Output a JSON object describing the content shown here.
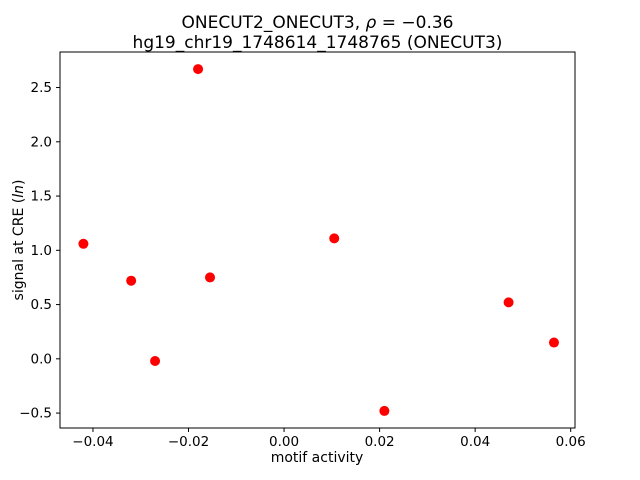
{
  "chart_data": {
    "type": "scatter",
    "title": {
      "prefix": "ONECUT2_ONECUT3, ",
      "rho": "ρ",
      "eq": " = −0.36",
      "line2": "hg19_chr19_1748614_1748765 (ONECUT3)"
    },
    "xlabel": "motif activity",
    "ylabel": {
      "pre": "signal at CRE (",
      "ln": "ln",
      "post": ")"
    },
    "marker_color": "#ff0000",
    "axis_color": "#000000",
    "xlim": [
      -0.0469,
      0.0609
    ],
    "ylim": [
      -0.6375,
      2.8275
    ],
    "xticks": [
      {
        "v": -0.04,
        "label": "−0.04"
      },
      {
        "v": -0.02,
        "label": "−0.02"
      },
      {
        "v": 0.0,
        "label": "0.00"
      },
      {
        "v": 0.02,
        "label": "0.02"
      },
      {
        "v": 0.04,
        "label": "0.04"
      },
      {
        "v": 0.06,
        "label": "0.06"
      }
    ],
    "yticks": [
      {
        "v": -0.5,
        "label": "−0.5"
      },
      {
        "v": 0.0,
        "label": "0.0"
      },
      {
        "v": 0.5,
        "label": "0.5"
      },
      {
        "v": 1.0,
        "label": "1.0"
      },
      {
        "v": 1.5,
        "label": "1.5"
      },
      {
        "v": 2.0,
        "label": "2.0"
      },
      {
        "v": 2.5,
        "label": "2.5"
      }
    ],
    "points": [
      {
        "x": -0.042,
        "y": 1.06
      },
      {
        "x": -0.032,
        "y": 0.72
      },
      {
        "x": -0.027,
        "y": -0.02
      },
      {
        "x": -0.018,
        "y": 2.67
      },
      {
        "x": -0.0155,
        "y": 0.75
      },
      {
        "x": 0.0105,
        "y": 1.11
      },
      {
        "x": 0.021,
        "y": -0.48
      },
      {
        "x": 0.047,
        "y": 0.52
      },
      {
        "x": 0.0565,
        "y": 0.15
      }
    ],
    "grid": false,
    "legend": "none"
  }
}
